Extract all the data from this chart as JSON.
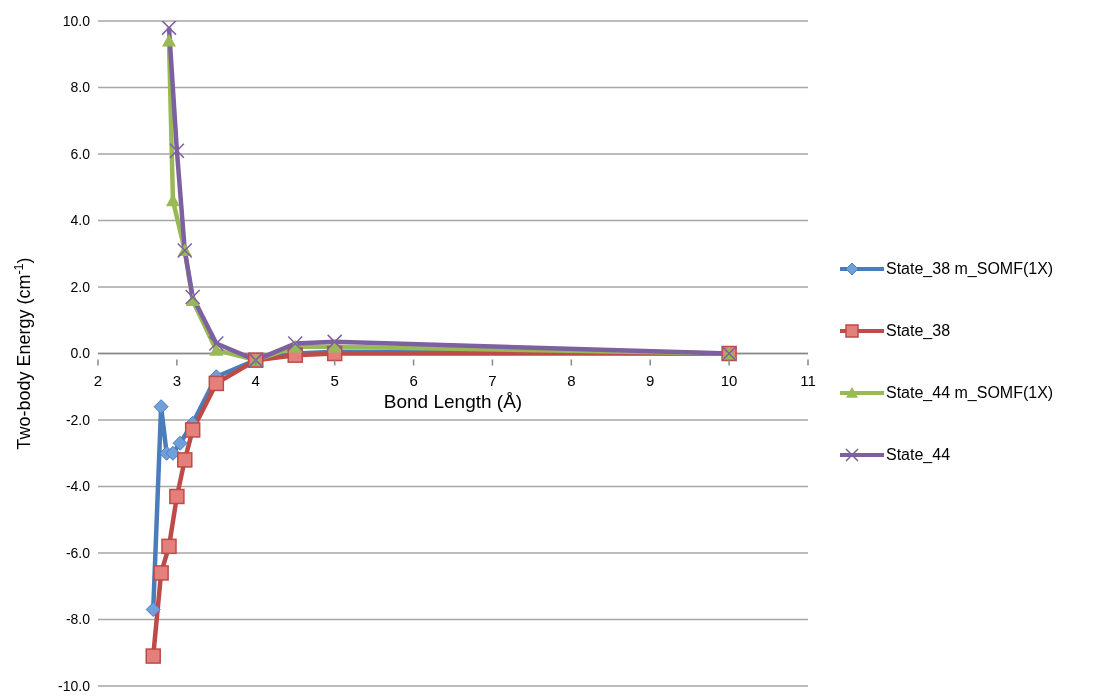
{
  "chart_data": {
    "type": "line",
    "xlabel": "Bond Length (Å)",
    "ylabel": "Two-body Energy (cm$^{-1}$)",
    "xlim": [
      2,
      11
    ],
    "xticks": [
      2,
      3,
      4,
      5,
      6,
      7,
      8,
      9,
      10,
      11
    ],
    "ylim": [
      -10,
      10
    ],
    "yticks": [
      {
        "value": -10,
        "label": "-10.0"
      },
      {
        "value": -8,
        "label": "-8.0"
      },
      {
        "value": -6,
        "label": "-6.0"
      },
      {
        "value": -4,
        "label": "-4.0"
      },
      {
        "value": -2,
        "label": "-2.0"
      },
      {
        "value": 0,
        "label": "0.0"
      },
      {
        "value": 2,
        "label": "2.0"
      },
      {
        "value": 4,
        "label": "4.0"
      },
      {
        "value": 6,
        "label": "6.0"
      },
      {
        "value": 8,
        "label": "8.0"
      },
      {
        "value": 10,
        "label": "10.0"
      }
    ],
    "grid": "y",
    "legend": "right",
    "series": [
      {
        "name": "State_38 m_SOMF(1X)",
        "color": "#4a7ebb",
        "marker": "diamond",
        "x": [
          2.7,
          2.8,
          2.87,
          2.95,
          3.04,
          3.2,
          3.5,
          4,
          4.5,
          5,
          10
        ],
        "values": [
          -7.7,
          -1.6,
          -3.0,
          -3.0,
          -2.7,
          -2.1,
          -0.7,
          -0.2,
          0.0,
          0.05,
          0.0
        ]
      },
      {
        "name": "State_38",
        "color": "#be4b48",
        "marker": "square",
        "x": [
          2.7,
          2.8,
          2.9,
          3.0,
          3.1,
          3.2,
          3.5,
          4,
          4.5,
          5,
          10
        ],
        "values": [
          -9.1,
          -6.6,
          -5.8,
          -4.3,
          -3.2,
          -2.3,
          -0.9,
          -0.2,
          -0.05,
          0.0,
          0.0
        ]
      },
      {
        "name": "State_44 m_SOMF(1X)",
        "color": "#98b954",
        "marker": "triangle",
        "x": [
          2.9,
          2.95,
          3.1,
          3.2,
          3.5,
          4,
          4.5,
          5,
          10
        ],
        "values": [
          9.4,
          4.6,
          3.1,
          1.6,
          0.1,
          -0.2,
          0.2,
          0.2,
          0.0
        ]
      },
      {
        "name": "State_44",
        "color": "#7d60a0",
        "marker": "cross",
        "x": [
          2.9,
          3.0,
          3.1,
          3.2,
          3.5,
          4,
          4.5,
          5,
          10
        ],
        "values": [
          9.8,
          6.1,
          3.1,
          1.7,
          0.3,
          -0.2,
          0.3,
          0.35,
          0.0
        ]
      }
    ]
  }
}
